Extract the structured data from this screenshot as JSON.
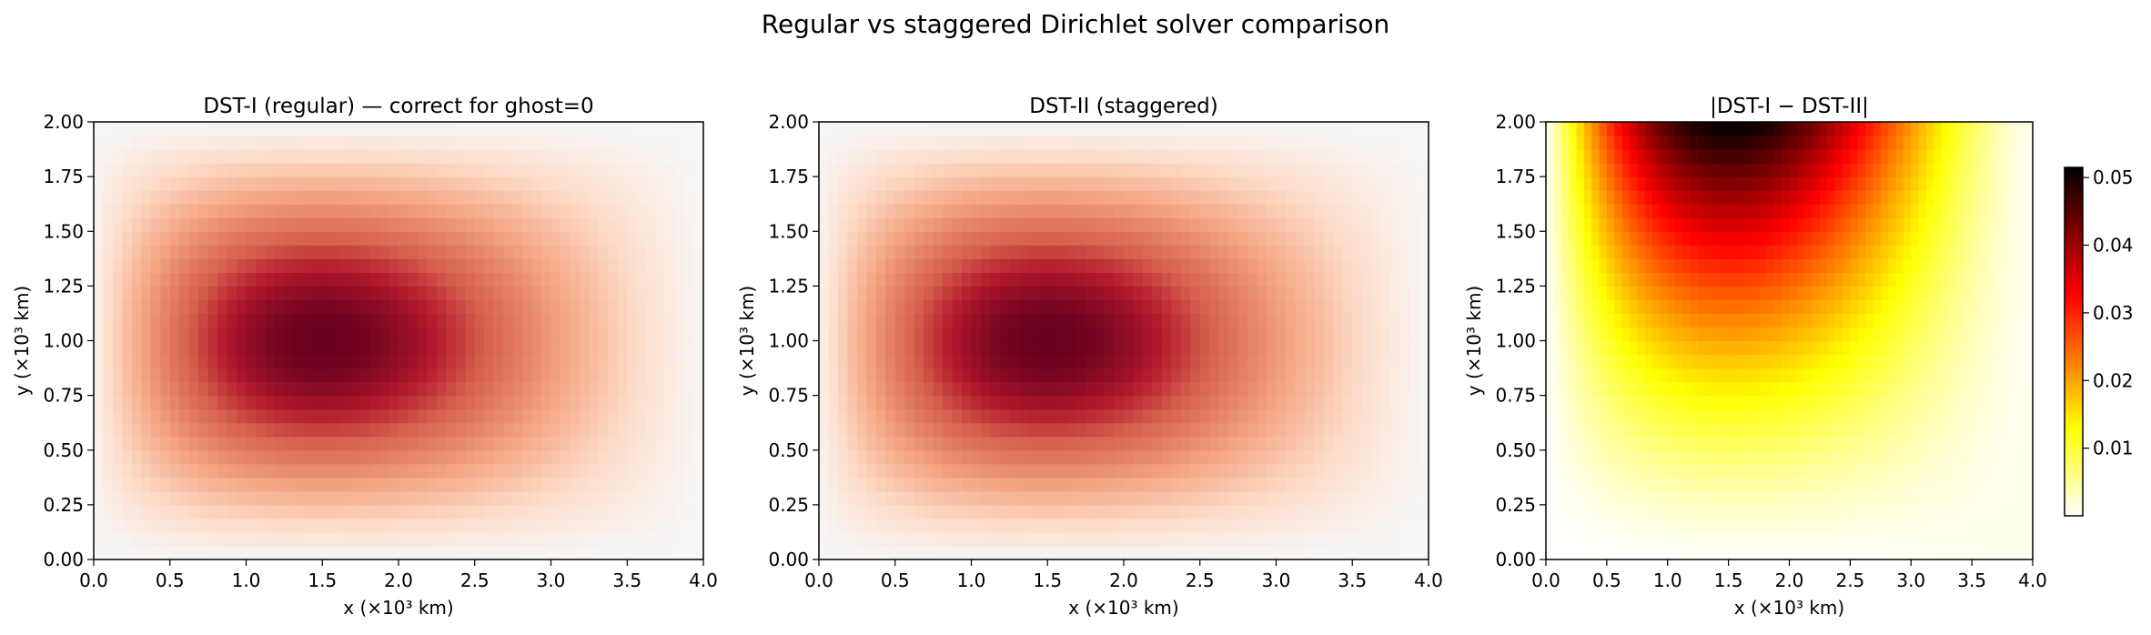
{
  "figure": {
    "suptitle": "Regular vs staggered Dirichlet solver comparison"
  },
  "chart_data": [
    {
      "type": "heatmap",
      "title": "DST-I (regular) — correct for ghost=0",
      "xlabel": "x (×10³ km)",
      "ylabel": "y (×10³ km)",
      "xlim": [
        0,
        4
      ],
      "ylim": [
        0,
        2
      ],
      "xticks": [
        "0.0",
        "0.5",
        "1.0",
        "1.5",
        "2.0",
        "2.5",
        "3.0",
        "3.5",
        "4.0"
      ],
      "yticks": [
        "0.00",
        "0.25",
        "0.50",
        "0.75",
        "1.00",
        "1.25",
        "1.50",
        "1.75",
        "2.00"
      ],
      "grid_shape": [
        32,
        64
      ],
      "colormap": "RdBu_r",
      "peak": {
        "x": 1.5,
        "y": 1.0
      },
      "colorbar": false
    },
    {
      "type": "heatmap",
      "title": "DST-II (staggered)",
      "xlabel": "x (×10³ km)",
      "ylabel": "y (×10³ km)",
      "xlim": [
        0,
        4
      ],
      "ylim": [
        0,
        2
      ],
      "xticks": [
        "0.0",
        "0.5",
        "1.0",
        "1.5",
        "2.0",
        "2.5",
        "3.0",
        "3.5",
        "4.0"
      ],
      "yticks": [
        "0.00",
        "0.25",
        "0.50",
        "0.75",
        "1.00",
        "1.25",
        "1.50",
        "1.75",
        "2.00"
      ],
      "grid_shape": [
        32,
        64
      ],
      "colormap": "RdBu_r",
      "peak": {
        "x": 1.5,
        "y": 1.0
      },
      "colorbar": false
    },
    {
      "type": "heatmap",
      "title": "|DST-I − DST-II|",
      "xlabel": "x (×10³ km)",
      "ylabel": "y (×10³ km)",
      "xlim": [
        0,
        4
      ],
      "ylim": [
        0,
        2
      ],
      "xticks": [
        "0.0",
        "0.5",
        "1.0",
        "1.5",
        "2.0",
        "2.5",
        "3.0",
        "3.5",
        "4.0"
      ],
      "yticks": [
        "0.00",
        "0.25",
        "0.50",
        "0.75",
        "1.00",
        "1.25",
        "1.50",
        "1.75",
        "2.00"
      ],
      "grid_shape": [
        32,
        64
      ],
      "colormap": "hot_r",
      "peak": {
        "x": 1.5,
        "y": 2.0
      },
      "colorbar": true,
      "colorbar_range": [
        0.0,
        0.0515
      ],
      "colorbar_ticks": [
        "0.01",
        "0.02",
        "0.03",
        "0.04",
        "0.05"
      ]
    }
  ]
}
